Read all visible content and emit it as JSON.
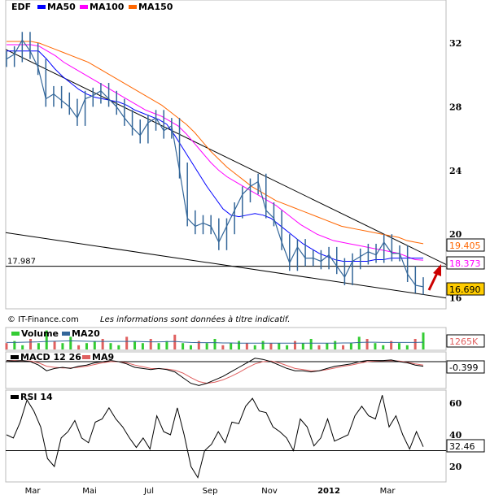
{
  "chart_data": [
    {
      "type": "line",
      "title": "EDF",
      "ylim": [
        15.5,
        33.5
      ],
      "yticks": [
        16,
        20,
        24,
        28,
        32
      ],
      "legend": [
        {
          "name": "EDF",
          "color": "#336699"
        },
        {
          "name": "MA50",
          "color": "#0000ff"
        },
        {
          "name": "MA100",
          "color": "#ff00ff"
        },
        {
          "name": "MA150",
          "color": "#ff6600"
        }
      ],
      "close": [
        31,
        31.3,
        32.2,
        31.5,
        30.5,
        28.5,
        28.8,
        28.4,
        28,
        27.3,
        28.5,
        28.7,
        29,
        28.5,
        28,
        27.3,
        26.7,
        26.2,
        27,
        27.3,
        26.5,
        26.8,
        24,
        21,
        20.5,
        20.7,
        20.5,
        19.5,
        20.5,
        21.5,
        22.5,
        23,
        23.3,
        21.5,
        21,
        19.5,
        18.2,
        19.2,
        18.5,
        18.5,
        18.3,
        18.7,
        18,
        17.3,
        18.3,
        18.6,
        18.9,
        18.7,
        19.5,
        18.8,
        18.8,
        17.5,
        16.8,
        16.7
      ],
      "ma50": [
        31.5,
        31.5,
        31.5,
        31.5,
        31.5,
        31,
        30.4,
        29.9,
        29.5,
        29.1,
        28.8,
        28.6,
        28.5,
        28.4,
        28.3,
        28.1,
        27.8,
        27.6,
        27.4,
        27.2,
        26.9,
        26.2,
        25.4,
        24.6,
        23.8,
        23,
        22.3,
        21.6,
        21.2,
        21.1,
        21.2,
        21.3,
        21.2,
        21,
        20.6,
        20.2,
        19.8,
        19.4,
        19.1,
        18.8,
        18.6,
        18.4,
        18.3,
        18.3,
        18.3,
        18.3,
        18.4,
        18.4,
        18.5,
        18.5,
        18.5,
        18.5,
        18.5
      ],
      "ma100": [
        31.9,
        31.9,
        31.9,
        31.9,
        31.8,
        31.5,
        31.2,
        30.8,
        30.5,
        30.2,
        29.9,
        29.6,
        29.3,
        29,
        28.7,
        28.4,
        28.1,
        27.8,
        27.6,
        27.4,
        27.1,
        26.8,
        26.3,
        25.7,
        25.1,
        24.5,
        24,
        23.6,
        23.3,
        23,
        22.7,
        22.4,
        22.1,
        21.8,
        21.4,
        21,
        20.6,
        20.3,
        20,
        19.8,
        19.6,
        19.5,
        19.4,
        19.3,
        19.2,
        19.1,
        19,
        18.9,
        18.8,
        18.6,
        18.4,
        18.37
      ],
      "ma150": [
        32.1,
        32.1,
        32.1,
        32.1,
        32,
        31.8,
        31.6,
        31.4,
        31.2,
        31,
        30.8,
        30.5,
        30.2,
        29.9,
        29.6,
        29.3,
        29,
        28.7,
        28.4,
        28.1,
        27.7,
        27.3,
        26.9,
        26.4,
        25.8,
        25.2,
        24.7,
        24.2,
        23.8,
        23.4,
        23,
        22.7,
        22.4,
        22.1,
        21.9,
        21.7,
        21.5,
        21.3,
        21.1,
        20.9,
        20.7,
        20.5,
        20.4,
        20.3,
        20.2,
        20.1,
        20,
        19.9,
        19.8,
        19.6,
        19.5,
        19.405
      ],
      "support_level": 17.987,
      "trendlines": [
        {
          "from": 31.6,
          "to": 18.1
        },
        {
          "from": 20.1,
          "to": 16.0
        }
      ],
      "last_values": {
        "close": "16.690",
        "ma100": "18.373",
        "ma150": "19.405",
        "support": "17.987"
      }
    },
    {
      "type": "bar",
      "title": "Volume",
      "legend": [
        {
          "name": "Volume",
          "color": "#33cc33"
        },
        {
          "name": "MA20",
          "color": "#336699"
        }
      ],
      "values": [
        3,
        4,
        2,
        5,
        3,
        9,
        4,
        3,
        6,
        2,
        3,
        4,
        5,
        3,
        2,
        6,
        4,
        3,
        5,
        3,
        4,
        7,
        3,
        2,
        4,
        3,
        5,
        2,
        3,
        4,
        3,
        2,
        4,
        3,
        3,
        2,
        4,
        3,
        5,
        2,
        3,
        4,
        2,
        3,
        6,
        5,
        3,
        2,
        4,
        3,
        2,
        5,
        8
      ],
      "ma20": [
        3.3,
        3.3,
        3.4,
        3.5,
        3.6,
        3.8,
        3.9,
        4,
        4.1,
        4,
        3.9,
        3.8,
        3.8,
        3.8,
        3.8,
        3.8,
        3.8,
        3.7,
        3.6,
        3.6,
        3.7,
        3.8,
        3.5,
        3.3,
        3.2,
        3.2,
        3.2,
        3.1,
        3.1,
        3,
        3,
        3,
        3,
        3,
        3,
        3,
        3,
        3,
        3,
        3,
        3,
        3,
        3.1,
        3.1,
        3.3,
        3.4,
        3.4,
        3.3,
        3.3,
        3.3,
        3.3,
        3.3,
        3.4
      ],
      "last_value": "1265K"
    },
    {
      "type": "line",
      "title": "MACD 12 26",
      "legend": [
        {
          "name": "MACD 12 26",
          "color": "#000000"
        },
        {
          "name": "MA9",
          "color": "#e06060"
        }
      ],
      "macd": [
        0.1,
        0.05,
        0.1,
        0,
        -0.3,
        -0.8,
        -0.6,
        -0.5,
        -0.6,
        -0.4,
        -0.3,
        -0.1,
        0,
        0.1,
        0,
        -0.2,
        -0.5,
        -0.6,
        -0.7,
        -0.6,
        -0.7,
        -0.9,
        -1.4,
        -1.9,
        -2.1,
        -1.9,
        -1.6,
        -1.3,
        -0.9,
        -0.5,
        -0.1,
        0.3,
        0.2,
        0,
        -0.3,
        -0.6,
        -0.8,
        -0.8,
        -0.9,
        -0.8,
        -0.6,
        -0.4,
        -0.3,
        -0.2,
        0,
        0.1,
        0.1,
        0.1,
        0.15,
        0,
        -0.1,
        -0.3,
        -0.399
      ],
      "ma9": [
        0.1,
        0.1,
        0.08,
        0.05,
        -0.1,
        -0.4,
        -0.5,
        -0.55,
        -0.55,
        -0.5,
        -0.4,
        -0.25,
        -0.1,
        0,
        0,
        -0.1,
        -0.3,
        -0.45,
        -0.6,
        -0.62,
        -0.65,
        -0.75,
        -1,
        -1.4,
        -1.75,
        -1.9,
        -1.8,
        -1.6,
        -1.3,
        -0.95,
        -0.55,
        -0.2,
        0,
        0.05,
        -0.1,
        -0.35,
        -0.6,
        -0.7,
        -0.8,
        -0.8,
        -0.7,
        -0.55,
        -0.4,
        -0.3,
        -0.15,
        0,
        0.05,
        0.08,
        0.1,
        0.05,
        -0.05,
        -0.2,
        -0.3
      ],
      "zero_line": 0,
      "last_value": "-0.399"
    },
    {
      "type": "line",
      "title": "RSI 14",
      "ylim": [
        10,
        68
      ],
      "yticks": [
        20,
        40,
        60
      ],
      "reference": 30,
      "values": [
        40,
        38,
        48,
        62,
        55,
        45,
        25,
        20,
        38,
        42,
        49,
        38,
        35,
        48,
        50,
        57,
        50,
        45,
        38,
        32,
        38,
        31,
        52,
        42,
        40,
        57,
        40,
        20,
        13,
        30,
        34,
        42,
        35,
        48,
        47,
        58,
        63,
        55,
        54,
        45,
        42,
        38,
        30,
        50,
        45,
        33,
        38,
        50,
        36,
        38,
        40,
        52,
        58,
        52,
        50,
        65,
        45,
        52,
        40,
        31,
        42,
        32.46
      ],
      "last_value": "32.46"
    }
  ],
  "xaxis": {
    "labels": [
      "Mar",
      "Mai",
      "Jul",
      "Sep",
      "Nov",
      "2012",
      "Mar"
    ]
  },
  "footer": {
    "copyright": "© IT-Finance.com",
    "disclaimer": "Les informations sont données à titre indicatif."
  },
  "colors": {
    "price": "#336699",
    "ma50": "#0000ff",
    "ma100": "#ff00ff",
    "ma150": "#ff6600",
    "close_box": "#ffcc00",
    "volume_up": "#33cc33",
    "volume_down": "#e06060",
    "arrow": "#cc0000"
  }
}
